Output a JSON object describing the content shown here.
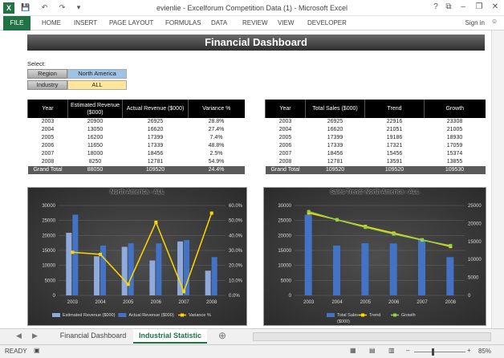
{
  "window": {
    "title": "evienlie - Excelforum Competition Data (1) - Microsoft Excel",
    "help": "?",
    "minimize": "–",
    "restore": "❐",
    "close": "✕"
  },
  "qat": {
    "glyphs": "💾 ↶ ↷ ▾"
  },
  "ribbon": {
    "file": "FILE",
    "tabs": [
      "HOME",
      "INSERT",
      "PAGE LAYOUT",
      "FORMULAS",
      "DATA",
      "REVIEW",
      "VIEW",
      "DEVELOPER"
    ],
    "signin": "Sign in"
  },
  "dashboard": {
    "title": "Financial Dashboard",
    "select_label": "Select:",
    "filters": [
      {
        "label": "Region",
        "value": "North America",
        "color": "#9dc3e6"
      },
      {
        "label": "Industry",
        "value": "ALL",
        "color": "#ffe699"
      }
    ]
  },
  "table1": {
    "headers": [
      "Year",
      "Estimated Revenue ($000)",
      "Actual Revenue ($000)",
      "Variance %"
    ],
    "rows": [
      [
        "2003",
        "20900",
        "26925",
        "28.8%"
      ],
      [
        "2004",
        "13050",
        "16620",
        "27.4%"
      ],
      [
        "2005",
        "16200",
        "17399",
        "7.4%"
      ],
      [
        "2006",
        "11650",
        "17339",
        "48.8%"
      ],
      [
        "2007",
        "18000",
        "18456",
        "2.5%"
      ],
      [
        "2008",
        "8250",
        "12781",
        "54.9%"
      ]
    ],
    "total": [
      "Grand Total",
      "88050",
      "109520",
      "24.4%"
    ]
  },
  "table2": {
    "headers": [
      "Year",
      "Total Sales ($000)",
      "Trend",
      "Growth"
    ],
    "rows": [
      [
        "2003",
        "26925",
        "22916",
        "23308"
      ],
      [
        "2004",
        "16620",
        "21051",
        "21005"
      ],
      [
        "2005",
        "17399",
        "19186",
        "18930"
      ],
      [
        "2006",
        "17339",
        "17321",
        "17059"
      ],
      [
        "2007",
        "18456",
        "15456",
        "15374"
      ],
      [
        "2008",
        "12781",
        "13591",
        "13855"
      ]
    ],
    "total": [
      "Grand Total",
      "109520",
      "109520",
      "109530"
    ]
  },
  "chart_data": [
    {
      "type": "bar",
      "title": "North America - ALL",
      "categories": [
        "2003",
        "2004",
        "2005",
        "2006",
        "2007",
        "2008"
      ],
      "series": [
        {
          "name": "Estimated Revenue ($000)",
          "kind": "bar",
          "color": "#8faadc",
          "values": [
            20900,
            13050,
            16200,
            11650,
            18000,
            8250
          ]
        },
        {
          "name": "Actual Revenue ($000)",
          "kind": "bar",
          "color": "#4472c4",
          "values": [
            26925,
            16620,
            17399,
            17339,
            18456,
            12781
          ]
        },
        {
          "name": "Variance %",
          "kind": "line",
          "axis": "secondary",
          "color": "#ffd700",
          "values": [
            28.8,
            27.4,
            7.4,
            48.8,
            2.5,
            54.9
          ]
        }
      ],
      "y_ticks": [
        "0",
        "5000",
        "10000",
        "15000",
        "20000",
        "25000",
        "30000"
      ],
      "y2_ticks": [
        "0.0%",
        "10.0%",
        "20.0%",
        "30.0%",
        "40.0%",
        "50.0%",
        "60.0%"
      ],
      "ylim": [
        0,
        30000
      ],
      "y2lim": [
        0,
        60
      ],
      "legend": "bottom"
    },
    {
      "type": "bar",
      "title": "Sales Trend: North America - ALL",
      "categories": [
        "2003",
        "2004",
        "2005",
        "2006",
        "2007",
        "2008"
      ],
      "series": [
        {
          "name": "Total Sales ($000)",
          "kind": "bar",
          "color": "#4472c4",
          "values": [
            26925,
            16620,
            17399,
            17339,
            18456,
            12781
          ]
        },
        {
          "name": "Trend",
          "kind": "line",
          "axis": "secondary",
          "color": "#ffd700",
          "values": [
            22916,
            21051,
            19186,
            17321,
            15456,
            13591
          ]
        },
        {
          "name": "Growth",
          "kind": "line",
          "axis": "secondary",
          "color": "#92d050",
          "values": [
            23308,
            21005,
            18930,
            17059,
            15374,
            13855
          ]
        }
      ],
      "y_ticks": [
        "0",
        "5000",
        "10000",
        "15000",
        "20000",
        "25000",
        "30000"
      ],
      "y2_ticks": [
        "0",
        "5000",
        "10000",
        "15000",
        "20000",
        "25000"
      ],
      "ylim": [
        0,
        30000
      ],
      "y2lim": [
        0,
        25000
      ],
      "legend": "bottom"
    }
  ],
  "sheets": {
    "tabs": [
      "Financial Dashboard",
      "Industrial Statistic"
    ],
    "active": 1,
    "add": "⊕",
    "prev": "◀",
    "next": "▶"
  },
  "status": {
    "ready": "READY",
    "zoom": "85%",
    "minus": "–",
    "plus": "+"
  }
}
